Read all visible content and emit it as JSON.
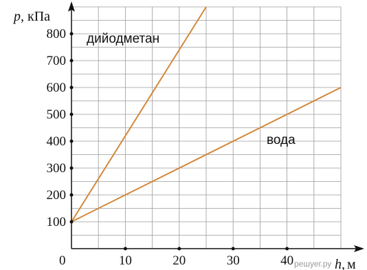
{
  "chart_data": {
    "type": "line",
    "x_axis": {
      "symbol": "h",
      "unit": "м",
      "range": [
        0,
        50
      ],
      "ticks": [
        0,
        10,
        20,
        30,
        40
      ],
      "minor_step": 5
    },
    "y_axis": {
      "symbol": "p",
      "unit": "кПа",
      "range": [
        0,
        900
      ],
      "ticks": [
        100,
        200,
        300,
        400,
        500,
        600,
        700,
        800
      ],
      "minor_step": 50
    },
    "grid": true,
    "series": [
      {
        "name": "дийодметан",
        "color": "#d2873a",
        "x": [
          0,
          25
        ],
        "y": [
          100,
          900
        ]
      },
      {
        "name": "вода",
        "color": "#d2873a",
        "x": [
          0,
          50
        ],
        "y": [
          100,
          600
        ]
      }
    ]
  },
  "labels": {
    "y_axis_symbol": "p,",
    "y_axis_unit": "кПа",
    "x_axis_symbol": "h,",
    "x_axis_unit": "м",
    "origin": "0",
    "watermark": "решуег.ру"
  }
}
